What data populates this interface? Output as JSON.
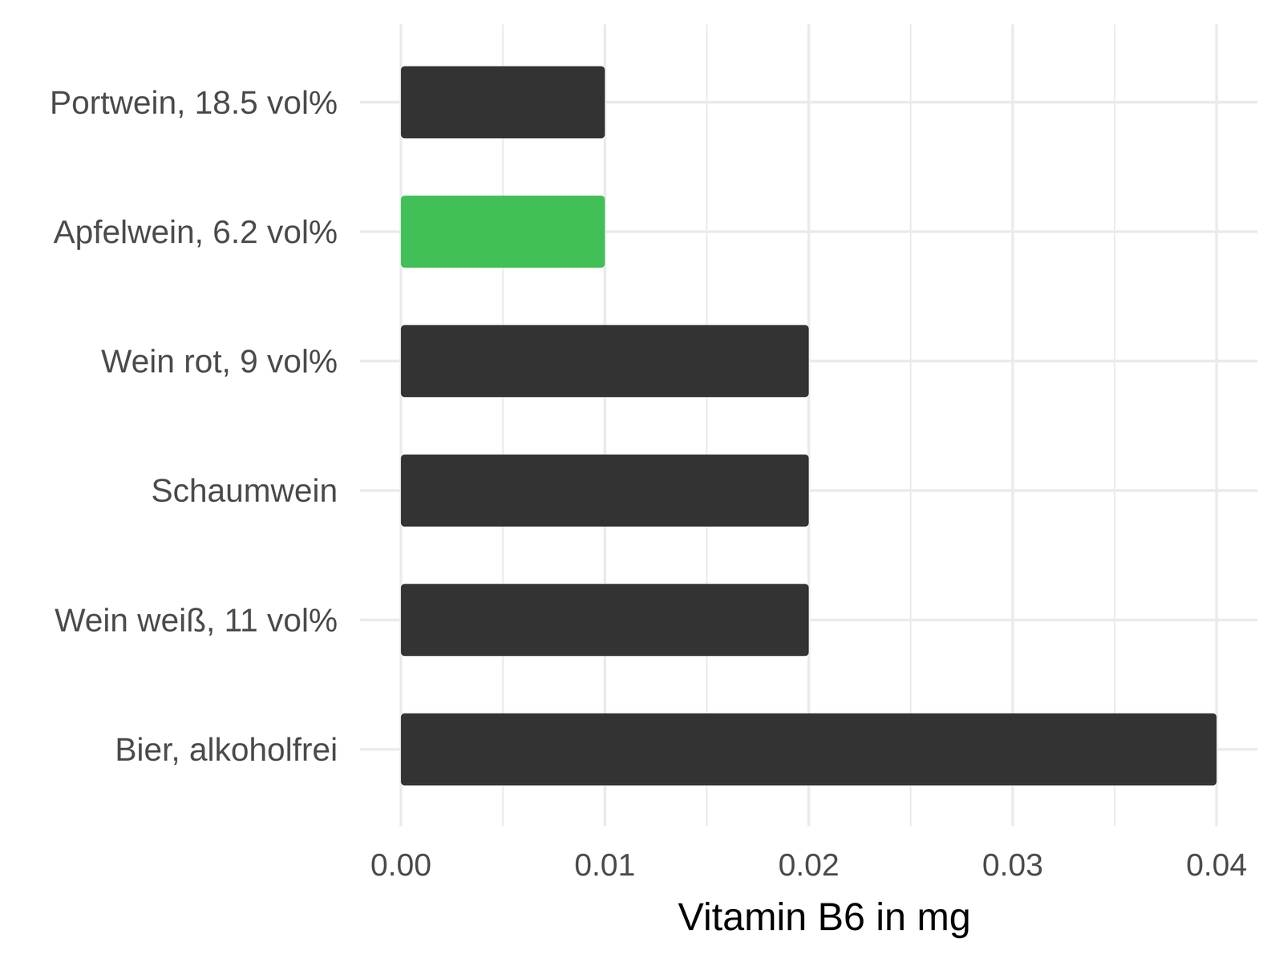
{
  "chart_data": {
    "type": "bar",
    "orientation": "horizontal",
    "x_label": "Vitamin B6 in mg",
    "categories": [
      "Portwein, 18.5 vol%",
      "Apfelwein, 6.2 vol%",
      "Wein rot, 9 vol%",
      "Schaumwein",
      "Wein weiß, 11 vol%",
      "Bier, alkoholfrei"
    ],
    "values": [
      0.01,
      0.01,
      0.02,
      0.02,
      0.02,
      0.04
    ],
    "colors": [
      "#333333",
      "#40c057",
      "#333333",
      "#333333",
      "#333333",
      "#333333"
    ],
    "xlim": [
      0,
      0.04
    ],
    "xticks": [
      {
        "value": 0,
        "label": "0.00"
      },
      {
        "value": 0.01,
        "label": "0.01"
      },
      {
        "value": 0.02,
        "label": "0.02"
      },
      {
        "value": 0.03,
        "label": "0.03"
      },
      {
        "value": 0.04,
        "label": "0.04"
      }
    ],
    "grid": true,
    "data_labels": false
  }
}
